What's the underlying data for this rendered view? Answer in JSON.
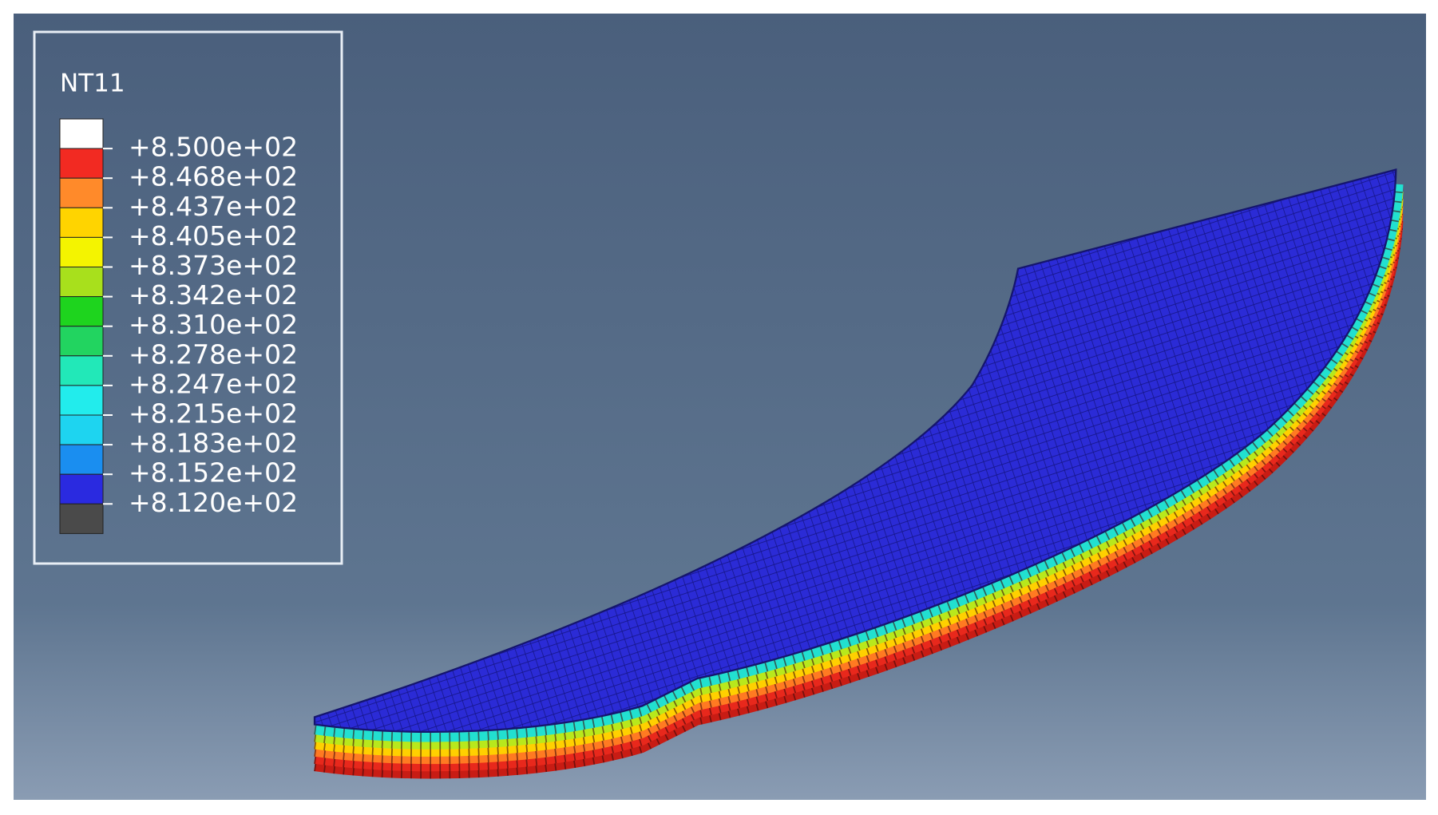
{
  "legend": {
    "title": "NT11",
    "levels": [
      "+8.500e+02",
      "+8.468e+02",
      "+8.437e+02",
      "+8.405e+02",
      "+8.373e+02",
      "+8.342e+02",
      "+8.310e+02",
      "+8.278e+02",
      "+8.247e+02",
      "+8.215e+02",
      "+8.183e+02",
      "+8.152e+02",
      "+8.120e+02"
    ],
    "colors": [
      "#ffffff",
      "#f22a22",
      "#ff8a2a",
      "#ffd400",
      "#f4f400",
      "#a8e01c",
      "#1ed41e",
      "#22d460",
      "#22e8b8",
      "#22ecec",
      "#1ed4f0",
      "#1a8ef0",
      "#2a2ae0",
      "#4a4a4a"
    ]
  }
}
